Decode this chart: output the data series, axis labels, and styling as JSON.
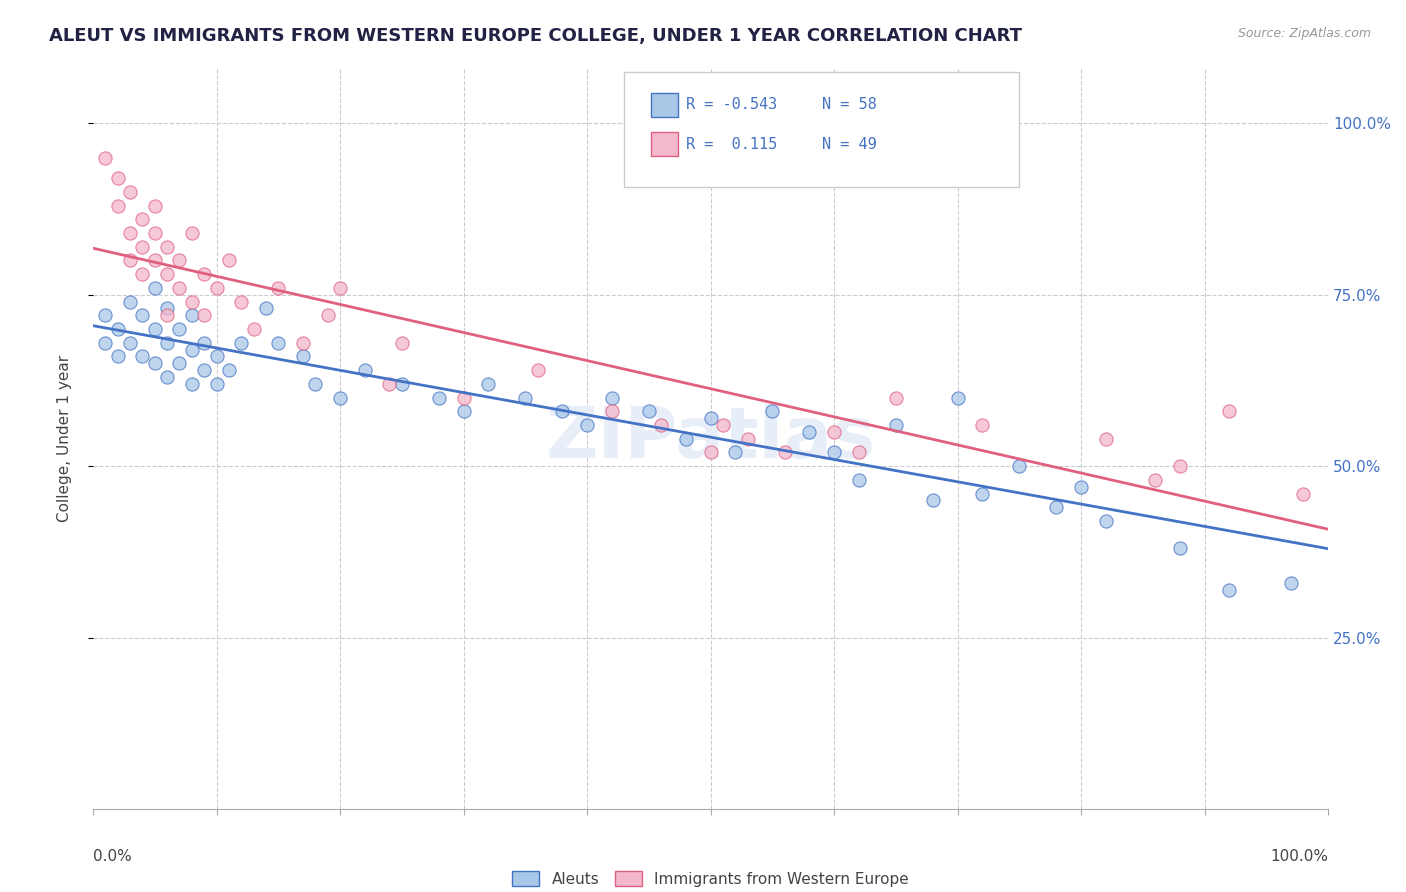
{
  "title": "ALEUT VS IMMIGRANTS FROM WESTERN EUROPE COLLEGE, UNDER 1 YEAR CORRELATION CHART",
  "source": "Source: ZipAtlas.com",
  "ylabel": "College, Under 1 year",
  "color_blue": "#a8c8e8",
  "color_pink": "#f4b8cc",
  "color_blue_line": "#4472c4",
  "color_pink_line": "#e06080",
  "watermark": "ZIPatlas",
  "blue_points": [
    [
      0.01,
      0.68
    ],
    [
      0.01,
      0.72
    ],
    [
      0.02,
      0.7
    ],
    [
      0.02,
      0.66
    ],
    [
      0.03,
      0.74
    ],
    [
      0.03,
      0.68
    ],
    [
      0.04,
      0.72
    ],
    [
      0.04,
      0.66
    ],
    [
      0.05,
      0.76
    ],
    [
      0.05,
      0.7
    ],
    [
      0.05,
      0.65
    ],
    [
      0.06,
      0.73
    ],
    [
      0.06,
      0.68
    ],
    [
      0.06,
      0.63
    ],
    [
      0.07,
      0.7
    ],
    [
      0.07,
      0.65
    ],
    [
      0.08,
      0.72
    ],
    [
      0.08,
      0.67
    ],
    [
      0.08,
      0.62
    ],
    [
      0.09,
      0.68
    ],
    [
      0.09,
      0.64
    ],
    [
      0.1,
      0.66
    ],
    [
      0.1,
      0.62
    ],
    [
      0.11,
      0.64
    ],
    [
      0.12,
      0.68
    ],
    [
      0.14,
      0.73
    ],
    [
      0.15,
      0.68
    ],
    [
      0.17,
      0.66
    ],
    [
      0.18,
      0.62
    ],
    [
      0.2,
      0.6
    ],
    [
      0.22,
      0.64
    ],
    [
      0.25,
      0.62
    ],
    [
      0.28,
      0.6
    ],
    [
      0.3,
      0.58
    ],
    [
      0.32,
      0.62
    ],
    [
      0.35,
      0.6
    ],
    [
      0.38,
      0.58
    ],
    [
      0.4,
      0.56
    ],
    [
      0.42,
      0.6
    ],
    [
      0.45,
      0.58
    ],
    [
      0.48,
      0.54
    ],
    [
      0.5,
      0.57
    ],
    [
      0.52,
      0.52
    ],
    [
      0.55,
      0.58
    ],
    [
      0.58,
      0.55
    ],
    [
      0.6,
      0.52
    ],
    [
      0.62,
      0.48
    ],
    [
      0.65,
      0.56
    ],
    [
      0.68,
      0.45
    ],
    [
      0.7,
      0.6
    ],
    [
      0.72,
      0.46
    ],
    [
      0.75,
      0.5
    ],
    [
      0.78,
      0.44
    ],
    [
      0.8,
      0.47
    ],
    [
      0.82,
      0.42
    ],
    [
      0.88,
      0.38
    ],
    [
      0.92,
      0.32
    ],
    [
      0.97,
      0.33
    ]
  ],
  "pink_points": [
    [
      0.01,
      0.95
    ],
    [
      0.02,
      0.88
    ],
    [
      0.02,
      0.92
    ],
    [
      0.03,
      0.84
    ],
    [
      0.03,
      0.9
    ],
    [
      0.03,
      0.8
    ],
    [
      0.04,
      0.86
    ],
    [
      0.04,
      0.82
    ],
    [
      0.04,
      0.78
    ],
    [
      0.05,
      0.88
    ],
    [
      0.05,
      0.84
    ],
    [
      0.05,
      0.8
    ],
    [
      0.06,
      0.82
    ],
    [
      0.06,
      0.78
    ],
    [
      0.06,
      0.72
    ],
    [
      0.07,
      0.8
    ],
    [
      0.07,
      0.76
    ],
    [
      0.08,
      0.84
    ],
    [
      0.08,
      0.74
    ],
    [
      0.09,
      0.78
    ],
    [
      0.09,
      0.72
    ],
    [
      0.1,
      0.76
    ],
    [
      0.11,
      0.8
    ],
    [
      0.12,
      0.74
    ],
    [
      0.13,
      0.7
    ],
    [
      0.15,
      0.76
    ],
    [
      0.17,
      0.68
    ],
    [
      0.19,
      0.72
    ],
    [
      0.2,
      0.76
    ],
    [
      0.24,
      0.62
    ],
    [
      0.25,
      0.68
    ],
    [
      0.3,
      0.6
    ],
    [
      0.36,
      0.64
    ],
    [
      0.42,
      0.58
    ],
    [
      0.46,
      0.56
    ],
    [
      0.5,
      0.52
    ],
    [
      0.51,
      0.56
    ],
    [
      0.53,
      0.54
    ],
    [
      0.56,
      0.52
    ],
    [
      0.6,
      0.55
    ],
    [
      0.62,
      0.52
    ],
    [
      0.65,
      0.6
    ],
    [
      0.72,
      0.56
    ],
    [
      0.82,
      0.54
    ],
    [
      0.86,
      0.48
    ],
    [
      0.88,
      0.5
    ],
    [
      0.92,
      0.58
    ],
    [
      0.98,
      0.46
    ]
  ]
}
